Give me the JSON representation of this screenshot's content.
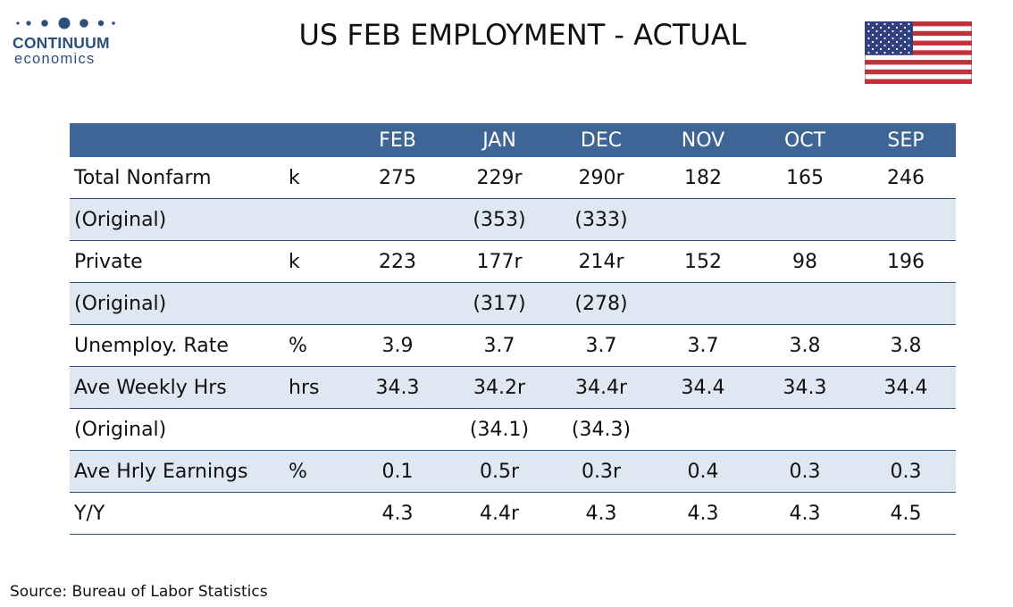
{
  "logo": {
    "brand": "CONTINUUM",
    "sub": "economics"
  },
  "title": "US FEB EMPLOYMENT - ACTUAL",
  "flag_icon": "us-flag-icon",
  "colors": {
    "header_bg": "#3f6496",
    "alt_row": "#dfe7f2",
    "brand": "#2d4f7c"
  },
  "table": {
    "columns": [
      "FEB",
      "JAN",
      "DEC",
      "NOV",
      "OCT",
      "SEP"
    ],
    "rows": [
      {
        "label": "Total Nonfarm",
        "unit": "k",
        "values": [
          "275",
          "229r",
          "290r",
          "182",
          "165",
          "246"
        ]
      },
      {
        "label": "(Original)",
        "unit": "",
        "values": [
          "",
          "(353)",
          "(333)",
          "",
          "",
          ""
        ]
      },
      {
        "label": "Private",
        "unit": "k",
        "values": [
          "223",
          "177r",
          "214r",
          "152",
          "98",
          "196"
        ]
      },
      {
        "label": "(Original)",
        "unit": "",
        "values": [
          "",
          "(317)",
          "(278)",
          "",
          "",
          ""
        ]
      },
      {
        "label": "Unemploy. Rate",
        "unit": "%",
        "values": [
          "3.9",
          "3.7",
          "3.7",
          "3.7",
          "3.8",
          "3.8"
        ]
      },
      {
        "label": "Ave Weekly Hrs",
        "unit": "hrs",
        "values": [
          "34.3",
          "34.2r",
          "34.4r",
          "34.4",
          "34.3",
          "34.4"
        ]
      },
      {
        "label": "(Original)",
        "unit": "",
        "values": [
          "",
          "(34.1)",
          "(34.3)",
          "",
          "",
          ""
        ]
      },
      {
        "label": "Ave Hrly Earnings",
        "unit": "%",
        "values": [
          "0.1",
          "0.5r",
          "0.3r",
          "0.4",
          "0.3",
          "0.3"
        ]
      },
      {
        "label": "Y/Y",
        "unit": "",
        "values": [
          "4.3",
          "4.4r",
          "4.3",
          "4.3",
          "4.3",
          "4.5"
        ]
      }
    ]
  },
  "source": "Source: Bureau of Labor Statistics"
}
